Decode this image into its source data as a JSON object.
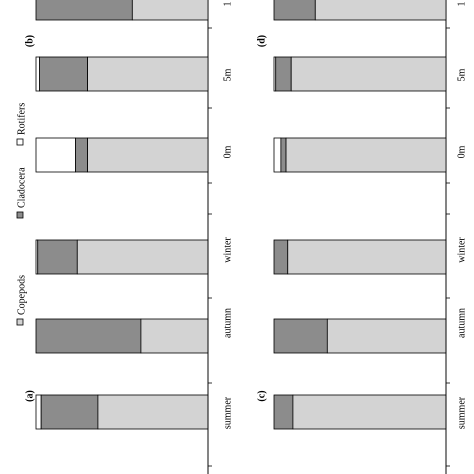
{
  "legend": [
    {
      "name": "Copepods",
      "color": "#d3d3d3"
    },
    {
      "name": "Cladocera",
      "color": "#8c8c8c"
    },
    {
      "name": "Rotifers",
      "color": "#ffffff"
    }
  ],
  "chart_data": [
    {
      "type": "bar",
      "panel_label": "(a)",
      "orientation": "horizontal-stacked-100",
      "categories": [
        "summer",
        "autumn",
        "winter"
      ],
      "series": [
        {
          "name": "Rotifers",
          "values": [
            3,
            0,
            1
          ]
        },
        {
          "name": "Cladocera",
          "values": [
            33,
            61,
            23
          ]
        },
        {
          "name": "Copepods",
          "values": [
            64,
            39,
            76
          ]
        }
      ],
      "xlim": [
        0,
        100
      ]
    },
    {
      "type": "bar",
      "panel_label": "(b)",
      "orientation": "horizontal-stacked-100",
      "categories": [
        "0m",
        "5m",
        "1"
      ],
      "series": [
        {
          "name": "Rotifers",
          "values": [
            23,
            2,
            0
          ]
        },
        {
          "name": "Cladocera",
          "values": [
            7,
            28,
            56
          ]
        },
        {
          "name": "Copepods",
          "values": [
            70,
            70,
            44
          ]
        }
      ],
      "xlim": [
        0,
        100
      ]
    },
    {
      "type": "bar",
      "panel_label": "(c)",
      "orientation": "horizontal-stacked-100",
      "categories": [
        "summer",
        "autumn",
        "winter"
      ],
      "series": [
        {
          "name": "Rotifers",
          "values": [
            0,
            0,
            0
          ]
        },
        {
          "name": "Cladocera",
          "values": [
            11,
            31,
            8
          ]
        },
        {
          "name": "Copepods",
          "values": [
            89,
            69,
            92
          ]
        }
      ],
      "xlim": [
        0,
        100
      ]
    },
    {
      "type": "bar",
      "panel_label": "(d)",
      "orientation": "horizontal-stacked-100",
      "categories": [
        "0m",
        "5m",
        "1"
      ],
      "series": [
        {
          "name": "Rotifers",
          "values": [
            4,
            1,
            0
          ]
        },
        {
          "name": "Cladocera",
          "values": [
            3,
            9,
            24
          ]
        },
        {
          "name": "Copepods",
          "values": [
            93,
            90,
            76
          ]
        }
      ],
      "xlim": [
        0,
        100
      ]
    }
  ]
}
